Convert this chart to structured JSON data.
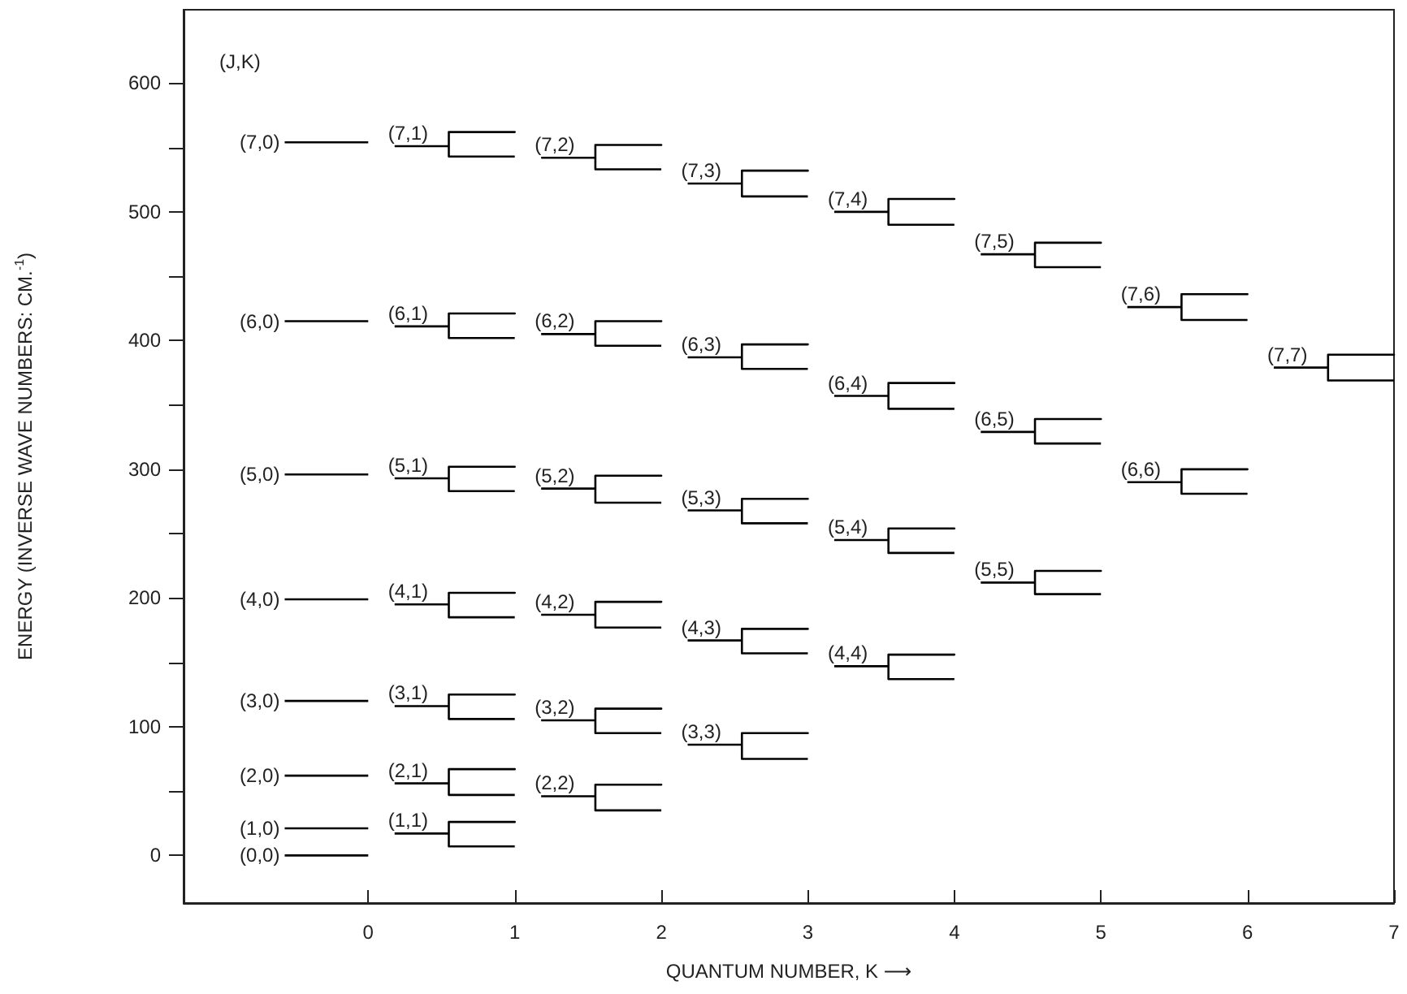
{
  "chart_data": {
    "type": "line",
    "xlabel": "QUANTUM NUMBER, K ⟶",
    "ylabel": "ENERGY (INVERSE WAVE NUMBERS: CM.$^{-1}$)",
    "marker": "none",
    "line_style": "solid",
    "xlim": [
      -1.26,
      7
    ],
    "xticks": [
      0,
      1,
      2,
      3,
      4,
      5,
      6,
      7
    ],
    "ylim": [
      -37,
      657
    ],
    "yticks": [
      0,
      {
        "value": 50,
        "label": null
      },
      100,
      {
        "value": 150,
        "label": null
      },
      200,
      {
        "value": 250,
        "label": null
      },
      300,
      {
        "value": 350,
        "label": null
      },
      400,
      {
        "value": 450,
        "label": null
      },
      500,
      {
        "value": 550,
        "label": null
      },
      600
    ],
    "series": [
      {
        "color": "#000000",
        "x": [
          -0.57,
          0
        ],
        "values": [
          0,
          0
        ]
      },
      {
        "color": "#000000",
        "x": [
          -0.57,
          0
        ],
        "values": [
          21,
          21
        ]
      },
      {
        "color": "#000000",
        "x": [
          -0.57,
          0
        ],
        "values": [
          62,
          62
        ]
      },
      {
        "color": "#000000",
        "x": [
          -0.57,
          0
        ],
        "values": [
          120,
          120
        ]
      },
      {
        "color": "#000000",
        "x": [
          -0.57,
          0
        ],
        "values": [
          199,
          199
        ]
      },
      {
        "color": "#000000",
        "x": [
          -0.57,
          0
        ],
        "values": [
          296,
          296
        ]
      },
      {
        "color": "#000000",
        "x": [
          -0.57,
          0
        ],
        "values": [
          415,
          415
        ]
      },
      {
        "color": "#000000",
        "x": [
          -0.57,
          0
        ],
        "values": [
          554,
          554
        ]
      },
      {
        "color": "#000000",
        "x": [
          0.18,
          0.55,
          0.55,
          1,
          0.55,
          0.55,
          1
        ],
        "values": [
          17,
          17,
          26,
          26,
          26,
          7,
          7
        ]
      },
      {
        "color": "#000000",
        "x": [
          0.18,
          0.55,
          0.55,
          1,
          0.55,
          0.55,
          1
        ],
        "values": [
          56,
          56,
          67,
          67,
          67,
          47,
          47
        ]
      },
      {
        "color": "#000000",
        "x": [
          0.18,
          0.55,
          0.55,
          1,
          0.55,
          0.55,
          1
        ],
        "values": [
          116,
          116,
          125,
          125,
          125,
          106,
          106
        ]
      },
      {
        "color": "#000000",
        "x": [
          0.18,
          0.55,
          0.55,
          1,
          0.55,
          0.55,
          1
        ],
        "values": [
          195,
          195,
          204,
          204,
          204,
          185,
          185
        ]
      },
      {
        "color": "#000000",
        "x": [
          0.18,
          0.55,
          0.55,
          1,
          0.55,
          0.55,
          1
        ],
        "values": [
          293,
          293,
          302,
          302,
          302,
          283,
          283
        ]
      },
      {
        "color": "#000000",
        "x": [
          0.18,
          0.55,
          0.55,
          1,
          0.55,
          0.55,
          1
        ],
        "values": [
          411,
          411,
          421,
          421,
          421,
          402,
          402
        ]
      },
      {
        "color": "#000000",
        "x": [
          0.18,
          0.55,
          0.55,
          1,
          0.55,
          0.55,
          1
        ],
        "values": [
          551,
          551,
          562,
          562,
          562,
          543,
          543
        ]
      },
      {
        "color": "#000000",
        "x": [
          1.18,
          1.55,
          1.55,
          2,
          1.55,
          1.55,
          2
        ],
        "values": [
          46,
          46,
          55,
          55,
          55,
          35,
          35
        ]
      },
      {
        "color": "#000000",
        "x": [
          1.18,
          1.55,
          1.55,
          2,
          1.55,
          1.55,
          2
        ],
        "values": [
          105,
          105,
          114,
          114,
          114,
          95,
          95
        ]
      },
      {
        "color": "#000000",
        "x": [
          1.18,
          1.55,
          1.55,
          2,
          1.55,
          1.55,
          2
        ],
        "values": [
          187,
          187,
          197,
          197,
          197,
          177,
          177
        ]
      },
      {
        "color": "#000000",
        "x": [
          1.18,
          1.55,
          1.55,
          2,
          1.55,
          1.55,
          2
        ],
        "values": [
          285,
          285,
          295,
          295,
          295,
          274,
          274
        ]
      },
      {
        "color": "#000000",
        "x": [
          1.18,
          1.55,
          1.55,
          2,
          1.55,
          1.55,
          2
        ],
        "values": [
          405,
          405,
          415,
          415,
          415,
          396,
          396
        ]
      },
      {
        "color": "#000000",
        "x": [
          1.18,
          1.55,
          1.55,
          2,
          1.55,
          1.55,
          2
        ],
        "values": [
          542,
          542,
          552,
          552,
          552,
          533,
          533
        ]
      },
      {
        "color": "#000000",
        "x": [
          2.18,
          2.55,
          2.55,
          3,
          2.55,
          2.55,
          3
        ],
        "values": [
          86,
          86,
          95,
          95,
          95,
          75,
          75
        ]
      },
      {
        "color": "#000000",
        "x": [
          2.18,
          2.55,
          2.55,
          3,
          2.55,
          2.55,
          3
        ],
        "values": [
          167,
          167,
          176,
          176,
          176,
          157,
          157
        ]
      },
      {
        "color": "#000000",
        "x": [
          2.18,
          2.55,
          2.55,
          3,
          2.55,
          2.55,
          3
        ],
        "values": [
          268,
          268,
          277,
          277,
          277,
          258,
          258
        ]
      },
      {
        "color": "#000000",
        "x": [
          2.18,
          2.55,
          2.55,
          3,
          2.55,
          2.55,
          3
        ],
        "values": [
          387,
          387,
          397,
          397,
          397,
          378,
          378
        ]
      },
      {
        "color": "#000000",
        "x": [
          2.18,
          2.55,
          2.55,
          3,
          2.55,
          2.55,
          3
        ],
        "values": [
          522,
          522,
          532,
          532,
          532,
          512,
          512
        ]
      },
      {
        "color": "#000000",
        "x": [
          3.18,
          3.55,
          3.55,
          4,
          3.55,
          3.55,
          4
        ],
        "values": [
          147,
          147,
          156,
          156,
          156,
          137,
          137
        ]
      },
      {
        "color": "#000000",
        "x": [
          3.18,
          3.55,
          3.55,
          4,
          3.55,
          3.55,
          4
        ],
        "values": [
          245,
          245,
          254,
          254,
          254,
          235,
          235
        ]
      },
      {
        "color": "#000000",
        "x": [
          3.18,
          3.55,
          3.55,
          4,
          3.55,
          3.55,
          4
        ],
        "values": [
          357,
          357,
          367,
          367,
          367,
          347,
          347
        ]
      },
      {
        "color": "#000000",
        "x": [
          3.18,
          3.55,
          3.55,
          4,
          3.55,
          3.55,
          4
        ],
        "values": [
          500,
          500,
          510,
          510,
          510,
          490,
          490
        ]
      },
      {
        "color": "#000000",
        "x": [
          4.18,
          4.55,
          4.55,
          5,
          4.55,
          4.55,
          5
        ],
        "values": [
          212,
          212,
          221,
          221,
          221,
          203,
          203
        ]
      },
      {
        "color": "#000000",
        "x": [
          4.18,
          4.55,
          4.55,
          5,
          4.55,
          4.55,
          5
        ],
        "values": [
          329,
          329,
          339,
          339,
          339,
          320,
          320
        ]
      },
      {
        "color": "#000000",
        "x": [
          4.18,
          4.55,
          4.55,
          5,
          4.55,
          4.55,
          5
        ],
        "values": [
          467,
          467,
          476,
          476,
          476,
          457,
          457
        ]
      },
      {
        "color": "#000000",
        "x": [
          5.18,
          5.55,
          5.55,
          6,
          5.55,
          5.55,
          6
        ],
        "values": [
          290,
          290,
          300,
          300,
          300,
          281,
          281
        ]
      },
      {
        "color": "#000000",
        "x": [
          5.18,
          5.55,
          5.55,
          6,
          5.55,
          5.55,
          6
        ],
        "values": [
          426,
          426,
          436,
          436,
          436,
          416,
          416
        ]
      },
      {
        "color": "#000000",
        "x": [
          6.18,
          6.55,
          6.55,
          7,
          6.55,
          6.55,
          7
        ],
        "values": [
          379,
          379,
          389,
          389,
          389,
          369,
          369
        ]
      }
    ],
    "annotations": [
      "(J,K)",
      {
        "text": "(0,0)",
        "x": -0.57,
        "y": 0
      },
      {
        "text": "(1,0)",
        "x": -0.57,
        "y": 21
      },
      {
        "text": "(2,0)",
        "x": -0.57,
        "y": 62
      },
      {
        "text": "(3,0)",
        "x": -0.57,
        "y": 120
      },
      {
        "text": "(4,0)",
        "x": -0.57,
        "y": 199
      },
      {
        "text": "(5,0)",
        "x": -0.57,
        "y": 296
      },
      {
        "text": "(6,0)",
        "x": -0.57,
        "y": 415
      },
      {
        "text": "(7,0)",
        "x": -0.57,
        "y": 554
      },
      {
        "text": "(1,1)",
        "x": 0.18,
        "y": 17
      },
      {
        "text": "(2,1)",
        "x": 0.18,
        "y": 56
      },
      {
        "text": "(3,1)",
        "x": 0.18,
        "y": 116
      },
      {
        "text": "(4,1)",
        "x": 0.18,
        "y": 195
      },
      {
        "text": "(5,1)",
        "x": 0.18,
        "y": 293
      },
      {
        "text": "(6,1)",
        "x": 0.18,
        "y": 411
      },
      {
        "text": "(7,1)",
        "x": 0.18,
        "y": 551
      },
      {
        "text": "(2,2)",
        "x": 1.18,
        "y": 46
      },
      {
        "text": "(3,2)",
        "x": 1.18,
        "y": 105
      },
      {
        "text": "(4,2)",
        "x": 1.18,
        "y": 187
      },
      {
        "text": "(5,2)",
        "x": 1.18,
        "y": 285
      },
      {
        "text": "(6,2)",
        "x": 1.18,
        "y": 405
      },
      {
        "text": "(7,2)",
        "x": 1.18,
        "y": 542
      },
      {
        "text": "(3,3)",
        "x": 2.18,
        "y": 86
      },
      {
        "text": "(4,3)",
        "x": 2.18,
        "y": 167
      },
      {
        "text": "(5,3)",
        "x": 2.18,
        "y": 268
      },
      {
        "text": "(6,3)",
        "x": 2.18,
        "y": 387
      },
      {
        "text": "(7,3)",
        "x": 2.18,
        "y": 522
      },
      {
        "text": "(4,4)",
        "x": 3.18,
        "y": 147
      },
      {
        "text": "(5,4)",
        "x": 3.18,
        "y": 245
      },
      {
        "text": "(6,4)",
        "x": 3.18,
        "y": 357
      },
      {
        "text": "(7,4)",
        "x": 3.18,
        "y": 500
      },
      {
        "text": "(5,5)",
        "x": 4.18,
        "y": 212
      },
      {
        "text": "(6,5)",
        "x": 4.18,
        "y": 329
      },
      {
        "text": "(7,5)",
        "x": 4.18,
        "y": 467
      },
      {
        "text": "(6,6)",
        "x": 5.18,
        "y": 290
      },
      {
        "text": "(7,6)",
        "x": 5.18,
        "y": 426
      },
      {
        "text": "(7,7)",
        "x": 6.18,
        "y": 379
      }
    ]
  }
}
